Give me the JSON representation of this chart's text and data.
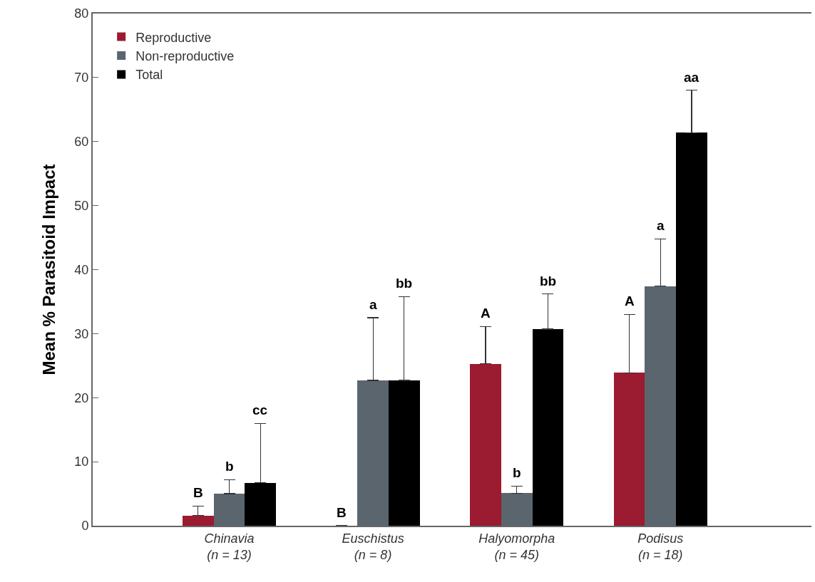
{
  "chart_data": {
    "type": "bar",
    "ylabel": "Mean % Parasitoid Impact",
    "categories": [
      "Chinavia\n(n = 13)",
      "Euschistus\n(n = 8)",
      "Halyomorpha\n(n = 45)",
      "Podisus\n(n = 18)"
    ],
    "series": [
      {
        "name": "Reproductive",
        "color": "#9b1b30",
        "values": [
          1.6,
          0,
          25.3,
          23.9
        ],
        "errors": [
          [
            1.6,
            3.1
          ],
          null,
          [
            25.3,
            31.1
          ],
          [
            23.9,
            33.0
          ]
        ]
      },
      {
        "name": "Non-reproductive",
        "color": "#5a656e",
        "values": [
          5.0,
          22.7,
          5.1,
          37.4
        ],
        "errors": [
          [
            5.0,
            7.2
          ],
          [
            22.7,
            32.5
          ],
          [
            5.1,
            6.2
          ],
          [
            37.4,
            44.8
          ]
        ]
      },
      {
        "name": "Total",
        "color": "#000000",
        "values": [
          6.7,
          22.7,
          30.7,
          61.4
        ],
        "errors": [
          [
            6.7,
            16.0
          ],
          [
            22.7,
            35.8
          ],
          [
            30.7,
            36.2
          ],
          [
            61.4,
            68.0
          ]
        ]
      }
    ],
    "annotations": [
      "B",
      "b",
      "cc",
      "B",
      "a",
      "bb",
      "A",
      "b",
      "bb",
      "A",
      "a",
      "aa"
    ],
    "ylim": [
      0,
      80
    ],
    "yticks": [
      0,
      10,
      20,
      30,
      40,
      50,
      60,
      70,
      80
    ],
    "grid": false,
    "legend": "top left"
  }
}
